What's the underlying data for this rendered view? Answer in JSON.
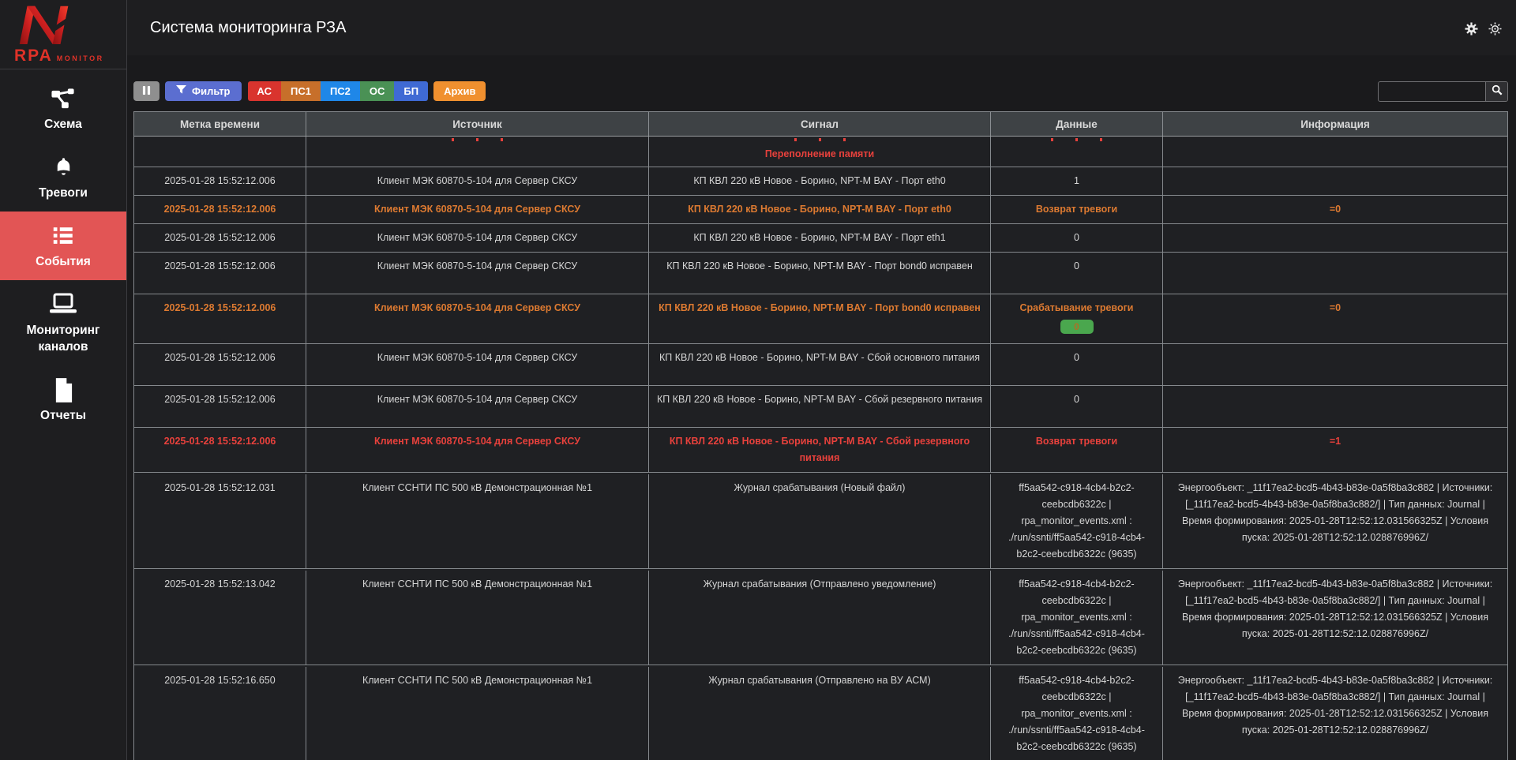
{
  "header": {
    "title": "Система мониторинга РЗА",
    "logo_primary": "RPA",
    "logo_secondary": "MONITOR",
    "icons": [
      {
        "name": "settings-gear-icon"
      },
      {
        "name": "display-settings-gear-icon"
      }
    ]
  },
  "sidebar": {
    "items": [
      {
        "id": "schema",
        "label": "Схема",
        "icon": "schema-icon",
        "active": false
      },
      {
        "id": "alarms",
        "label": "Тревоги",
        "icon": "alarms-bell-icon",
        "active": false
      },
      {
        "id": "events",
        "label": "События",
        "icon": "events-list-icon",
        "active": true
      },
      {
        "id": "channels",
        "label": "Мониторинг каналов",
        "icon": "channels-monitor-icon",
        "active": false
      },
      {
        "id": "reports",
        "label": "Отчеты",
        "icon": "reports-file-icon",
        "active": false
      }
    ]
  },
  "toolbar": {
    "pause": {
      "icon": "pause-icon",
      "color": "#8f8f8f"
    },
    "filter": {
      "label": "Фильтр",
      "icon": "funnel-icon",
      "color": "#5b6ed0"
    },
    "chips": [
      {
        "id": "as",
        "label": "АС",
        "color": "#d9342e"
      },
      {
        "id": "ps1",
        "label": "ПС1",
        "color": "#c76f2a"
      },
      {
        "id": "ps2",
        "label": "ПС2",
        "color": "#1f87e8"
      },
      {
        "id": "os",
        "label": "ОС",
        "color": "#4a9155"
      },
      {
        "id": "bp",
        "label": "БП",
        "color": "#3f6ad4"
      }
    ],
    "archive": {
      "label": "Архив",
      "color": "#f0902f"
    },
    "search": {
      "value": "",
      "icon": "search-icon"
    }
  },
  "table": {
    "columns": [
      {
        "id": "time",
        "label": "Метка времени"
      },
      {
        "id": "source",
        "label": "Источник"
      },
      {
        "id": "signal",
        "label": "Сигнал"
      },
      {
        "id": "data",
        "label": "Данные"
      },
      {
        "id": "info",
        "label": "Информация"
      }
    ],
    "rows": [
      {
        "style": "red",
        "partial": true,
        "time": "",
        "source": "",
        "signal": "Переполнение памяти",
        "data": "",
        "info": ""
      },
      {
        "style": "normal",
        "time": "2025-01-28 15:52:12.006",
        "source": "Клиент МЭК 60870-5-104 для Сервер СКСУ",
        "signal": "КП КВЛ 220 кВ Новое - Борино, NPT-M BAY - Порт eth0",
        "data": "1",
        "info": ""
      },
      {
        "style": "orange",
        "time": "2025-01-28 15:52:12.006",
        "source": "Клиент МЭК 60870-5-104 для Сервер СКСУ",
        "signal": "КП КВЛ 220 кВ Новое - Борино, NPT-M BAY - Порт eth0",
        "data": "Возврат тревоги",
        "info": "=0"
      },
      {
        "style": "normal",
        "time": "2025-01-28 15:52:12.006",
        "source": "Клиент МЭК 60870-5-104 для Сервер СКСУ",
        "signal": "КП КВЛ 220 кВ Новое - Борино, NPT-M BAY - Порт eth1",
        "data": "0",
        "info": ""
      },
      {
        "style": "normal",
        "time": "2025-01-28 15:52:12.006",
        "source": "Клиент МЭК 60870-5-104 для Сервер СКСУ",
        "signal": "КП КВЛ 220 кВ Новое - Борино, NPT-M BAY - Порт bond0 исправен",
        "data": "0",
        "info": ""
      },
      {
        "style": "orange",
        "time": "2025-01-28 15:52:12.006",
        "source": "Клиент МЭК 60870-5-104 для Сервер СКСУ",
        "signal": "КП КВЛ 220 кВ Новое - Борино, NPT-M BAY - Порт bond0 исправен",
        "data": "Срабатывание тревоги",
        "badge": "0",
        "info": "=0"
      },
      {
        "style": "normal",
        "time": "2025-01-28 15:52:12.006",
        "source": "Клиент МЭК 60870-5-104 для Сервер СКСУ",
        "signal": "КП КВЛ 220 кВ Новое - Борино, NPT-M BAY - Сбой основного питания",
        "data": "0",
        "info": ""
      },
      {
        "style": "normal",
        "time": "2025-01-28 15:52:12.006",
        "source": "Клиент МЭК 60870-5-104 для Сервер СКСУ",
        "signal": "КП КВЛ 220 кВ Новое - Борино, NPT-M BAY - Сбой резервного питания",
        "data": "0",
        "info": ""
      },
      {
        "style": "red",
        "time": "2025-01-28 15:52:12.006",
        "source": "Клиент МЭК 60870-5-104 для Сервер СКСУ",
        "signal": "КП КВЛ 220 кВ Новое - Борино, NPT-M BAY - Сбой резервного питания",
        "data": "Возврат тревоги",
        "info": "=1"
      },
      {
        "style": "normal",
        "time": "2025-01-28 15:52:12.031",
        "source": "Клиент ССНТИ ПС 500 кВ Демонстрационная №1",
        "signal": "Журнал срабатывания (Новый файл)",
        "data": "ff5aa542-c918-4cb4-b2c2-ceebcdb6322c | rpa_monitor_events.xml : ./run/ssnti/ff5aa542-c918-4cb4-b2c2-ceebcdb6322c (9635)",
        "info": "Энергообъект: _11f17ea2-bcd5-4b43-b83e-0a5f8ba3c882 | Источники: [_11f17ea2-bcd5-4b43-b83e-0a5f8ba3c882/] | Тип данных: Journal | Время формирования: 2025-01-28T12:52:12.031566325Z | Условия пуска: 2025-01-28T12:52:12.028876996Z/"
      },
      {
        "style": "normal",
        "time": "2025-01-28 15:52:13.042",
        "source": "Клиент ССНТИ ПС 500 кВ Демонстрационная №1",
        "signal": "Журнал срабатывания (Отправлено уведомление)",
        "data": "ff5aa542-c918-4cb4-b2c2-ceebcdb6322c | rpa_monitor_events.xml : ./run/ssnti/ff5aa542-c918-4cb4-b2c2-ceebcdb6322c (9635)",
        "info": "Энергообъект: _11f17ea2-bcd5-4b43-b83e-0a5f8ba3c882 | Источники: [_11f17ea2-bcd5-4b43-b83e-0a5f8ba3c882/] | Тип данных: Journal | Время формирования: 2025-01-28T12:52:12.031566325Z | Условия пуска: 2025-01-28T12:52:12.028876996Z/"
      },
      {
        "style": "normal",
        "time": "2025-01-28 15:52:16.650",
        "source": "Клиент ССНТИ ПС 500 кВ Демонстрационная №1",
        "signal": "Журнал срабатывания (Отправлено на ВУ АСМ)",
        "data": "ff5aa542-c918-4cb4-b2c2-ceebcdb6322c | rpa_monitor_events.xml : ./run/ssnti/ff5aa542-c918-4cb4-b2c2-ceebcdb6322c (9635)",
        "info": "Энергообъект: _11f17ea2-bcd5-4b43-b83e-0a5f8ba3c882 | Источники: [_11f17ea2-bcd5-4b43-b83e-0a5f8ba3c882/] | Тип данных: Journal | Время формирования: 2025-01-28T12:52:12.031566325Z | Условия пуска: 2025-01-28T12:52:12.028876996Z/"
      }
    ]
  },
  "colors": {
    "active_item": "#e25555",
    "row_orange": "#dd7a31",
    "row_red": "#e8413c",
    "badge_green": "#4aa74e",
    "logo_red": "#e03228",
    "table_header_bg": "#3e4245"
  }
}
